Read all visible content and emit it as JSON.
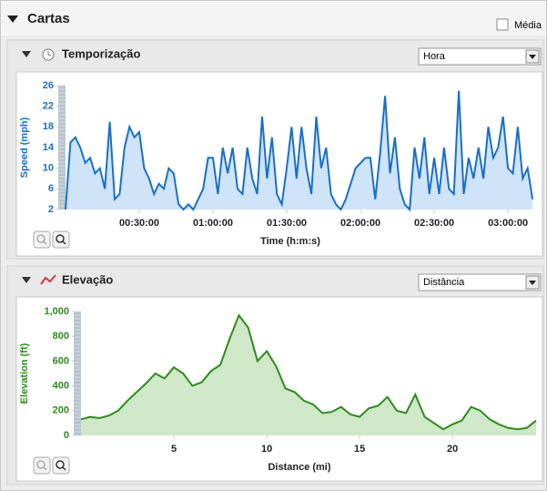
{
  "header": {
    "title": "Cartas",
    "checkbox": "Média"
  },
  "panels": [
    {
      "title": "Temporização",
      "dropdown": "Hora"
    },
    {
      "title": "Elevação",
      "dropdown": "Distância"
    }
  ],
  "chart_data": [
    {
      "type": "area",
      "ylabel": "Speed (mph)",
      "xlabel": "Time (h:m:s)",
      "color": "#1a6fc9",
      "fill_color": "#cfe4f8",
      "axis_color": "#1a6fc9",
      "xlim": [
        0,
        11420
      ],
      "ylim": [
        2,
        26
      ],
      "yticks": [
        2,
        6,
        10,
        14,
        18,
        22,
        26
      ],
      "xticks": [
        {
          "value": 1800,
          "label": "00:30:00"
        },
        {
          "value": 3600,
          "label": "01:00:00"
        },
        {
          "value": 5400,
          "label": "01:30:00"
        },
        {
          "value": 7200,
          "label": "02:00:00"
        },
        {
          "value": 9000,
          "label": "02:30:00"
        },
        {
          "value": 10800,
          "label": "03:00:00"
        }
      ],
      "x": [
        0,
        120,
        240,
        360,
        480,
        600,
        720,
        840,
        960,
        1080,
        1200,
        1320,
        1440,
        1560,
        1680,
        1800,
        1920,
        2040,
        2160,
        2280,
        2400,
        2520,
        2640,
        2760,
        2880,
        3000,
        3120,
        3240,
        3360,
        3480,
        3600,
        3720,
        3840,
        3960,
        4080,
        4200,
        4320,
        4440,
        4560,
        4680,
        4800,
        4920,
        5040,
        5160,
        5280,
        5400,
        5520,
        5640,
        5760,
        5880,
        6000,
        6120,
        6240,
        6360,
        6480,
        6600,
        6720,
        6840,
        6960,
        7080,
        7200,
        7320,
        7440,
        7560,
        7680,
        7800,
        7920,
        8040,
        8160,
        8280,
        8400,
        8520,
        8640,
        8760,
        8880,
        9000,
        9120,
        9240,
        9360,
        9480,
        9600,
        9720,
        9840,
        9960,
        10080,
        10200,
        10320,
        10440,
        10560,
        10680,
        10800,
        10920,
        11040,
        11160,
        11280,
        11400
      ],
      "values": [
        2,
        15,
        16,
        14,
        11,
        12,
        9,
        10,
        6,
        19,
        4,
        5,
        14,
        18,
        16,
        17,
        10,
        8,
        5,
        7,
        6,
        10,
        9,
        3,
        2,
        3,
        2,
        4,
        6,
        12,
        12,
        5,
        14,
        9,
        14,
        6,
        5,
        14,
        8,
        5,
        20,
        8,
        16,
        5,
        3,
        10,
        18,
        8,
        18,
        10,
        5,
        20,
        10,
        14,
        5,
        3,
        2,
        4,
        7,
        10,
        11,
        12,
        12,
        4,
        13,
        24,
        9,
        16,
        6,
        3,
        2,
        14,
        8,
        16,
        5,
        12,
        5,
        14,
        6,
        5,
        25,
        5,
        12,
        8,
        14,
        8,
        18,
        12,
        14,
        20,
        10,
        9,
        18,
        8,
        10,
        4
      ]
    },
    {
      "type": "area",
      "ylabel": "Elevation (ft)",
      "xlabel": "Distance (mi)",
      "color": "#2e8b1e",
      "fill_color": "#cfe8c8",
      "axis_color": "#2e8b1e",
      "xlim": [
        0,
        24.5
      ],
      "ylim": [
        0,
        1000
      ],
      "yticks": [
        0,
        200,
        400,
        600,
        800,
        {
          "value": 1000,
          "label": "1,000"
        }
      ],
      "xticks": [
        5,
        10,
        15,
        20
      ],
      "x": [
        0,
        0.5,
        1,
        1.5,
        2,
        2.5,
        3,
        3.5,
        4,
        4.5,
        5,
        5.5,
        6,
        6.5,
        7,
        7.5,
        8,
        8.5,
        9,
        9.5,
        10,
        10.5,
        11,
        11.5,
        12,
        12.5,
        13,
        13.5,
        14,
        14.5,
        15,
        15.5,
        16,
        16.5,
        17,
        17.5,
        18,
        18.5,
        19,
        19.5,
        20,
        20.5,
        21,
        21.5,
        22,
        22.5,
        23,
        23.5,
        24,
        24.5
      ],
      "values": [
        130,
        150,
        140,
        160,
        200,
        280,
        350,
        420,
        500,
        460,
        550,
        500,
        400,
        430,
        520,
        570,
        780,
        970,
        870,
        600,
        680,
        560,
        380,
        350,
        280,
        250,
        180,
        190,
        230,
        170,
        150,
        220,
        240,
        310,
        200,
        180,
        330,
        150,
        100,
        50,
        90,
        120,
        230,
        200,
        130,
        90,
        60,
        50,
        60,
        120
      ]
    }
  ]
}
